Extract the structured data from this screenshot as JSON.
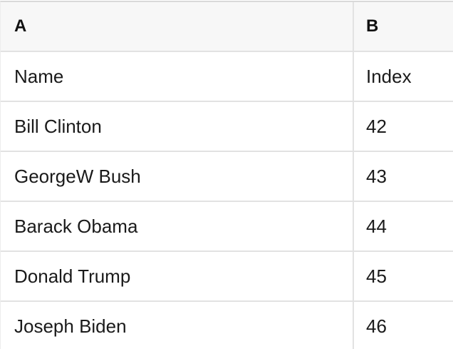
{
  "colors": {
    "header_background": "#f7f7f7",
    "row_background": "#ffffff",
    "grid_border": "#e2e2e2",
    "top_border": "#d9d9d9",
    "text": "#1a1a1a"
  },
  "table": {
    "headers": [
      "A",
      "B"
    ],
    "rows": [
      [
        "Name",
        "Index"
      ],
      [
        "Bill Clinton",
        "42"
      ],
      [
        "GeorgeW Bush",
        "43"
      ],
      [
        "Barack Obama",
        "44"
      ],
      [
        "Donald Trump",
        "45"
      ],
      [
        "Joseph Biden",
        "46"
      ]
    ]
  }
}
